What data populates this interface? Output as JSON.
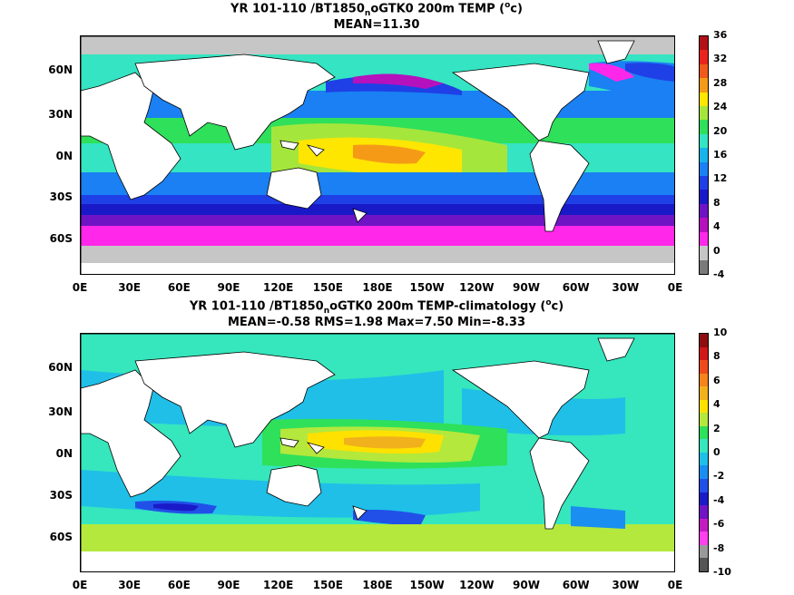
{
  "panel1": {
    "title_pre": "YR 101-110 /BT1850",
    "title_sub": "n",
    "title_mid": "oGTK0 200m TEMP (",
    "title_sup": "o",
    "title_post": "c)",
    "stats": "MEAN=11.30",
    "colorbar_labels": [
      "36",
      "32",
      "28",
      "24",
      "20",
      "16",
      "12",
      "8",
      "4",
      "0",
      "-4"
    ],
    "colorbar_colors": [
      "#b21016",
      "#e8241c",
      "#f0591c",
      "#f59a17",
      "#ffe600",
      "#a5e63c",
      "#2fe05a",
      "#34e4c2",
      "#17b3e9",
      "#1a80f3",
      "#1f40e6",
      "#1919c8",
      "#6e14c4",
      "#b511bd",
      "#ff27e9",
      "#c6c6c6",
      "#7a7a7a"
    ]
  },
  "panel2": {
    "title_pre": "YR 101-110 /BT1850",
    "title_sub": "n",
    "title_mid": "oGTK0 200m TEMP-climatology (",
    "title_sup": "o",
    "title_post": "c)",
    "stats": "MEAN=-0.58   RMS=1.98   Max=7.50   Min=-8.33",
    "colorbar_labels": [
      "10",
      "8",
      "6",
      "4",
      "2",
      "0",
      "-2",
      "-4",
      "-6",
      "-8",
      "-10"
    ],
    "colorbar_colors": [
      "#8e0e10",
      "#d01818",
      "#ef4a1c",
      "#f5841a",
      "#f0b11c",
      "#ffe100",
      "#b4e83c",
      "#2fe05a",
      "#36e6bd",
      "#1fbfe8",
      "#1a8ef1",
      "#2150e8",
      "#1a1ac8",
      "#7014c6",
      "#c21cc0",
      "#ff40ec",
      "#9a9a9a",
      "#555555"
    ]
  },
  "y_ticks": [
    "60N",
    "30N",
    "0N",
    "30S",
    "60S"
  ],
  "x_ticks": [
    "0E",
    "30E",
    "60E",
    "90E",
    "120E",
    "150E",
    "180E",
    "150W",
    "120W",
    "90W",
    "60W",
    "30W",
    "0E"
  ]
}
